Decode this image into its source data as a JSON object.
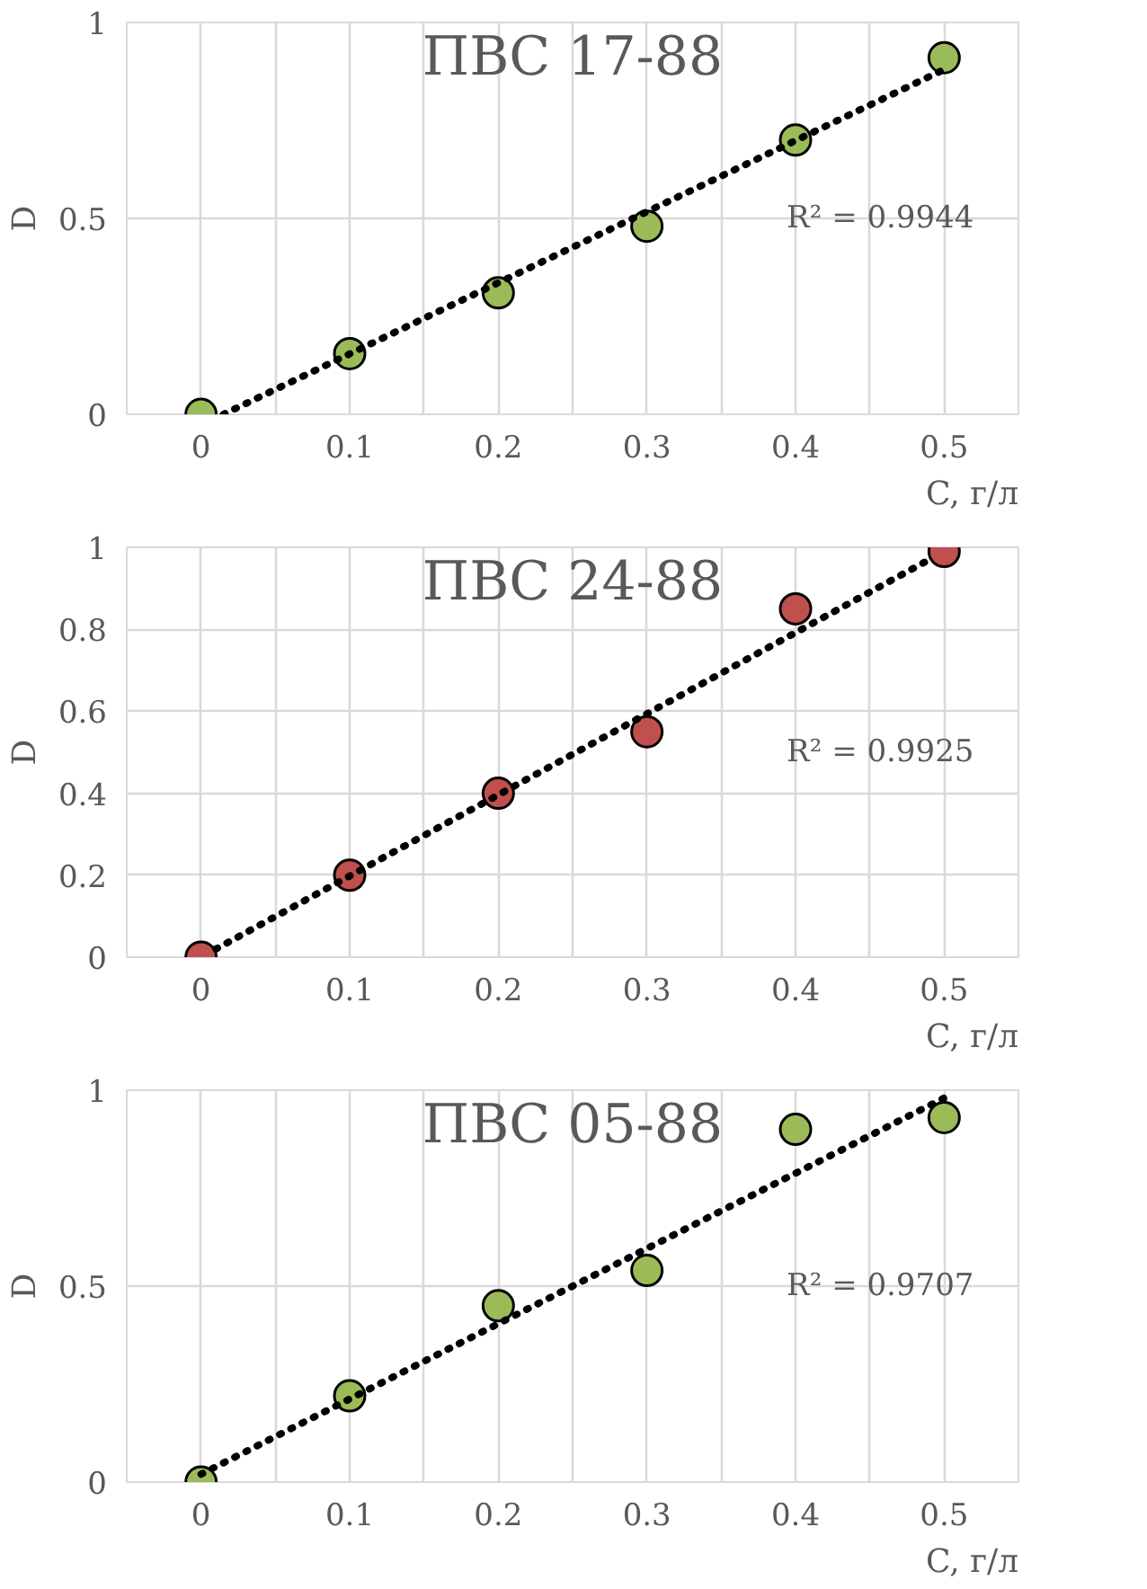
{
  "chart_data": [
    {
      "type": "scatter",
      "title": "ПВС 17-88",
      "xlabel": "C, г/л",
      "ylabel": "D",
      "grid": true,
      "x": [
        0,
        0.1,
        0.2,
        0.3,
        0.4,
        0.5
      ],
      "series": [
        {
          "marker": "circle",
          "color": "#9bbb59",
          "values": [
            0,
            0.155,
            0.31,
            0.48,
            0.7,
            0.91
          ]
        },
        {
          "type": "line",
          "color": "#000000",
          "line_style": "dotted",
          "x": [
            0.015,
            0.5
          ],
          "values": [
            0.0,
            0.88
          ]
        }
      ],
      "xlim": [
        -0.05,
        0.55
      ],
      "ylim": [
        0,
        1
      ],
      "xticks": [
        {
          "value": -0.05,
          "label": null
        },
        0,
        {
          "value": 0.05,
          "label": null
        },
        0.1,
        {
          "value": 0.15,
          "label": null
        },
        0.2,
        {
          "value": 0.25,
          "label": null
        },
        0.3,
        {
          "value": 0.35,
          "label": null
        },
        0.4,
        {
          "value": 0.45,
          "label": null
        },
        0.5,
        {
          "value": 0.55,
          "label": null
        }
      ],
      "yticks": [
        0,
        0.5,
        1
      ],
      "annotations": [
        "R² = 0.9944"
      ]
    },
    {
      "type": "scatter",
      "title": "ПВС 24-88",
      "xlabel": "C, г/л",
      "ylabel": "D",
      "grid": true,
      "x": [
        0,
        0.1,
        0.2,
        0.3,
        0.4,
        0.5
      ],
      "series": [
        {
          "marker": "circle",
          "color": "#c0504d",
          "values": [
            0,
            0.2,
            0.4,
            0.55,
            0.85,
            0.99
          ]
        },
        {
          "type": "line",
          "color": "#000000",
          "line_style": "dotted",
          "x": [
            0.01,
            0.49
          ],
          "values": [
            0.02,
            0.97
          ]
        }
      ],
      "xlim": [
        -0.05,
        0.55
      ],
      "ylim": [
        0,
        1
      ],
      "xticks": [
        {
          "value": -0.05,
          "label": null
        },
        0,
        {
          "value": 0.05,
          "label": null
        },
        0.1,
        {
          "value": 0.15,
          "label": null
        },
        0.2,
        {
          "value": 0.25,
          "label": null
        },
        0.3,
        {
          "value": 0.35,
          "label": null
        },
        0.4,
        {
          "value": 0.45,
          "label": null
        },
        0.5,
        {
          "value": 0.55,
          "label": null
        }
      ],
      "yticks": [
        0,
        0.2,
        0.4,
        0.6,
        0.8,
        1
      ],
      "annotations": [
        "R² = 0.9925"
      ]
    },
    {
      "type": "scatter",
      "title": "ПВС 05-88",
      "xlabel": "C, г/л",
      "ylabel": "D",
      "grid": true,
      "x": [
        0,
        0.1,
        0.2,
        0.3,
        0.4,
        0.5
      ],
      "series": [
        {
          "marker": "circle",
          "color": "#9bbb59",
          "values": [
            0,
            0.22,
            0.45,
            0.54,
            0.9,
            0.93
          ]
        },
        {
          "type": "line",
          "color": "#000000",
          "line_style": "dotted",
          "x": [
            0,
            0.5
          ],
          "values": [
            0.02,
            0.98
          ]
        }
      ],
      "xlim": [
        -0.05,
        0.55
      ],
      "ylim": [
        0,
        1
      ],
      "xticks": [
        {
          "value": -0.05,
          "label": null
        },
        0,
        {
          "value": 0.05,
          "label": null
        },
        0.1,
        {
          "value": 0.15,
          "label": null
        },
        0.2,
        {
          "value": 0.25,
          "label": null
        },
        0.3,
        {
          "value": 0.35,
          "label": null
        },
        0.4,
        {
          "value": 0.45,
          "label": null
        },
        0.5,
        {
          "value": 0.55,
          "label": null
        }
      ],
      "yticks": [
        0,
        0.5,
        1
      ],
      "annotations": [
        "R² = 0.9707"
      ]
    }
  ]
}
